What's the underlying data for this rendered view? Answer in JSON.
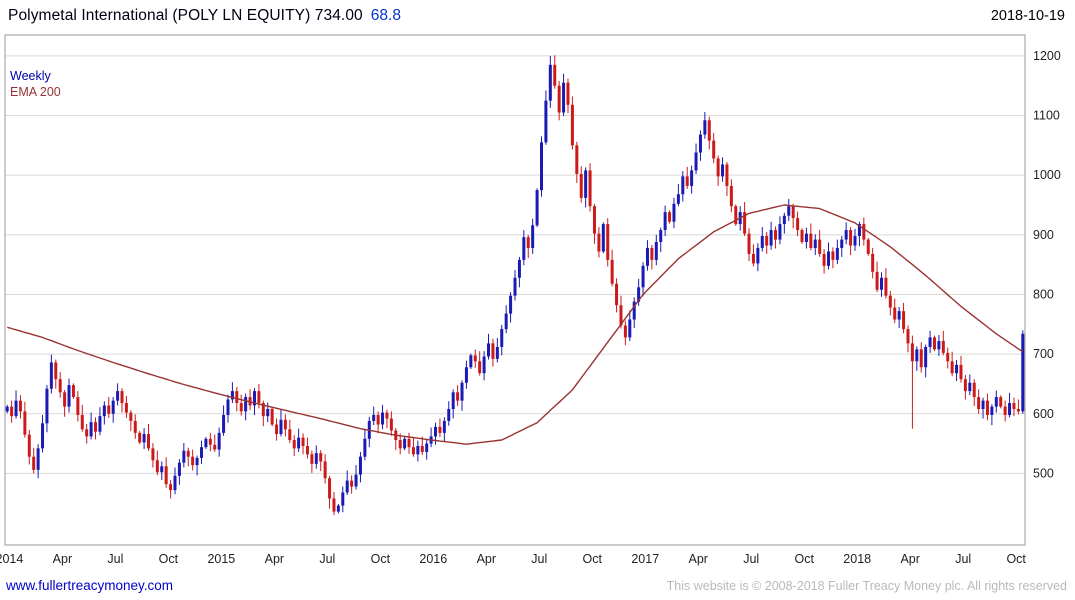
{
  "header": {
    "title": "Polymetal International (POLY LN EQUITY) 734.00",
    "change": "68.8",
    "date": "2018-10-19"
  },
  "legend": {
    "series1": "Weekly",
    "series2": "EMA 200"
  },
  "footer": {
    "link": "www.fullertreacymoney.com",
    "copyright": "This website is © 2008-2018 Fuller Treacy Money plc. All rights reserved"
  },
  "colors": {
    "up": "#1a1ab4",
    "down": "#cc1a1a",
    "ema": "#993333",
    "grid": "#d9d9d9",
    "border": "#999999",
    "tick_text": "#222222"
  },
  "chart_data": {
    "type": "candlestick-weekly",
    "title": "Polymetal International (POLY LN EQUITY)",
    "legend": [
      "Weekly",
      "EMA 200"
    ],
    "last_close": 734.0,
    "change": 68.8,
    "as_of_date": "2018-10-19",
    "ylim": [
      380,
      1235
    ],
    "y_ticks": [
      500,
      600,
      700,
      800,
      900,
      1000,
      1100,
      1200
    ],
    "x_ticks": [
      {
        "week": 0,
        "label": "2014"
      },
      {
        "week": 12,
        "label": "Apr"
      },
      {
        "week": 24,
        "label": "Jul"
      },
      {
        "week": 36,
        "label": "Oct"
      },
      {
        "week": 48,
        "label": "2015"
      },
      {
        "week": 60,
        "label": "Apr"
      },
      {
        "week": 72,
        "label": "Jul"
      },
      {
        "week": 84,
        "label": "Oct"
      },
      {
        "week": 96,
        "label": "2016"
      },
      {
        "week": 108,
        "label": "Apr"
      },
      {
        "week": 120,
        "label": "Jul"
      },
      {
        "week": 132,
        "label": "Oct"
      },
      {
        "week": 144,
        "label": "2017"
      },
      {
        "week": 156,
        "label": "Apr"
      },
      {
        "week": 168,
        "label": "Jul"
      },
      {
        "week": 180,
        "label": "Oct"
      },
      {
        "week": 192,
        "label": "2018"
      },
      {
        "week": 204,
        "label": "Apr"
      },
      {
        "week": 216,
        "label": "Jul"
      },
      {
        "week": 228,
        "label": "Oct"
      }
    ],
    "weekly_closes": [
      612,
      596,
      622,
      604,
      565,
      528,
      506,
      542,
      584,
      642,
      686,
      658,
      636,
      612,
      648,
      628,
      598,
      574,
      562,
      586,
      570,
      596,
      614,
      600,
      622,
      638,
      618,
      602,
      588,
      568,
      552,
      566,
      542,
      522,
      502,
      512,
      482,
      472,
      496,
      518,
      538,
      528,
      514,
      526,
      544,
      558,
      548,
      540,
      568,
      598,
      624,
      638,
      618,
      604,
      628,
      614,
      638,
      618,
      596,
      608,
      582,
      566,
      590,
      574,
      556,
      542,
      560,
      546,
      532,
      516,
      534,
      520,
      492,
      458,
      436,
      446,
      468,
      488,
      478,
      498,
      528,
      558,
      588,
      598,
      582,
      602,
      592,
      572,
      556,
      542,
      558,
      544,
      532,
      546,
      536,
      550,
      562,
      578,
      568,
      588,
      608,
      636,
      622,
      652,
      678,
      698,
      688,
      668,
      696,
      718,
      692,
      712,
      742,
      768,
      798,
      828,
      858,
      896,
      878,
      916,
      975,
      1055,
      1125,
      1185,
      1150,
      1105,
      1155,
      1118,
      1050,
      1002,
      962,
      1008,
      948,
      902,
      872,
      918,
      858,
      818,
      782,
      748,
      728,
      758,
      788,
      812,
      848,
      878,
      858,
      888,
      908,
      938,
      922,
      952,
      968,
      998,
      982,
      1008,
      1038,
      1068,
      1092,
      1058,
      1028,
      998,
      1018,
      982,
      948,
      918,
      938,
      902,
      868,
      852,
      878,
      898,
      882,
      908,
      892,
      918,
      932,
      948,
      928,
      908,
      888,
      902,
      878,
      892,
      868,
      848,
      872,
      858,
      878,
      892,
      908,
      882,
      898,
      918,
      892,
      868,
      838,
      808,
      828,
      798,
      778,
      758,
      772,
      742,
      718,
      688,
      708,
      678,
      712,
      728,
      708,
      722,
      702,
      688,
      668,
      682,
      658,
      638,
      652,
      628,
      608,
      622,
      598,
      612,
      628,
      612,
      598,
      618,
      608,
      604,
      734
    ],
    "extremes": [
      {
        "week": 74,
        "low": 430
      },
      {
        "week": 123,
        "high": 1200
      },
      {
        "week": 205,
        "low": 575
      },
      {
        "week": 230,
        "high": 740,
        "low": 600
      }
    ],
    "ema200_anchors": [
      [
        0,
        745
      ],
      [
        8,
        728
      ],
      [
        16,
        706
      ],
      [
        24,
        686
      ],
      [
        32,
        667
      ],
      [
        40,
        649
      ],
      [
        48,
        633
      ],
      [
        56,
        618
      ],
      [
        64,
        604
      ],
      [
        72,
        590
      ],
      [
        80,
        575
      ],
      [
        88,
        564
      ],
      [
        96,
        556
      ],
      [
        104,
        549
      ],
      [
        112,
        556
      ],
      [
        120,
        585
      ],
      [
        128,
        640
      ],
      [
        136,
        720
      ],
      [
        144,
        800
      ],
      [
        152,
        860
      ],
      [
        160,
        905
      ],
      [
        168,
        936
      ],
      [
        176,
        950
      ],
      [
        184,
        944
      ],
      [
        192,
        920
      ],
      [
        200,
        880
      ],
      [
        208,
        832
      ],
      [
        216,
        780
      ],
      [
        224,
        734
      ],
      [
        230,
        704
      ]
    ]
  }
}
